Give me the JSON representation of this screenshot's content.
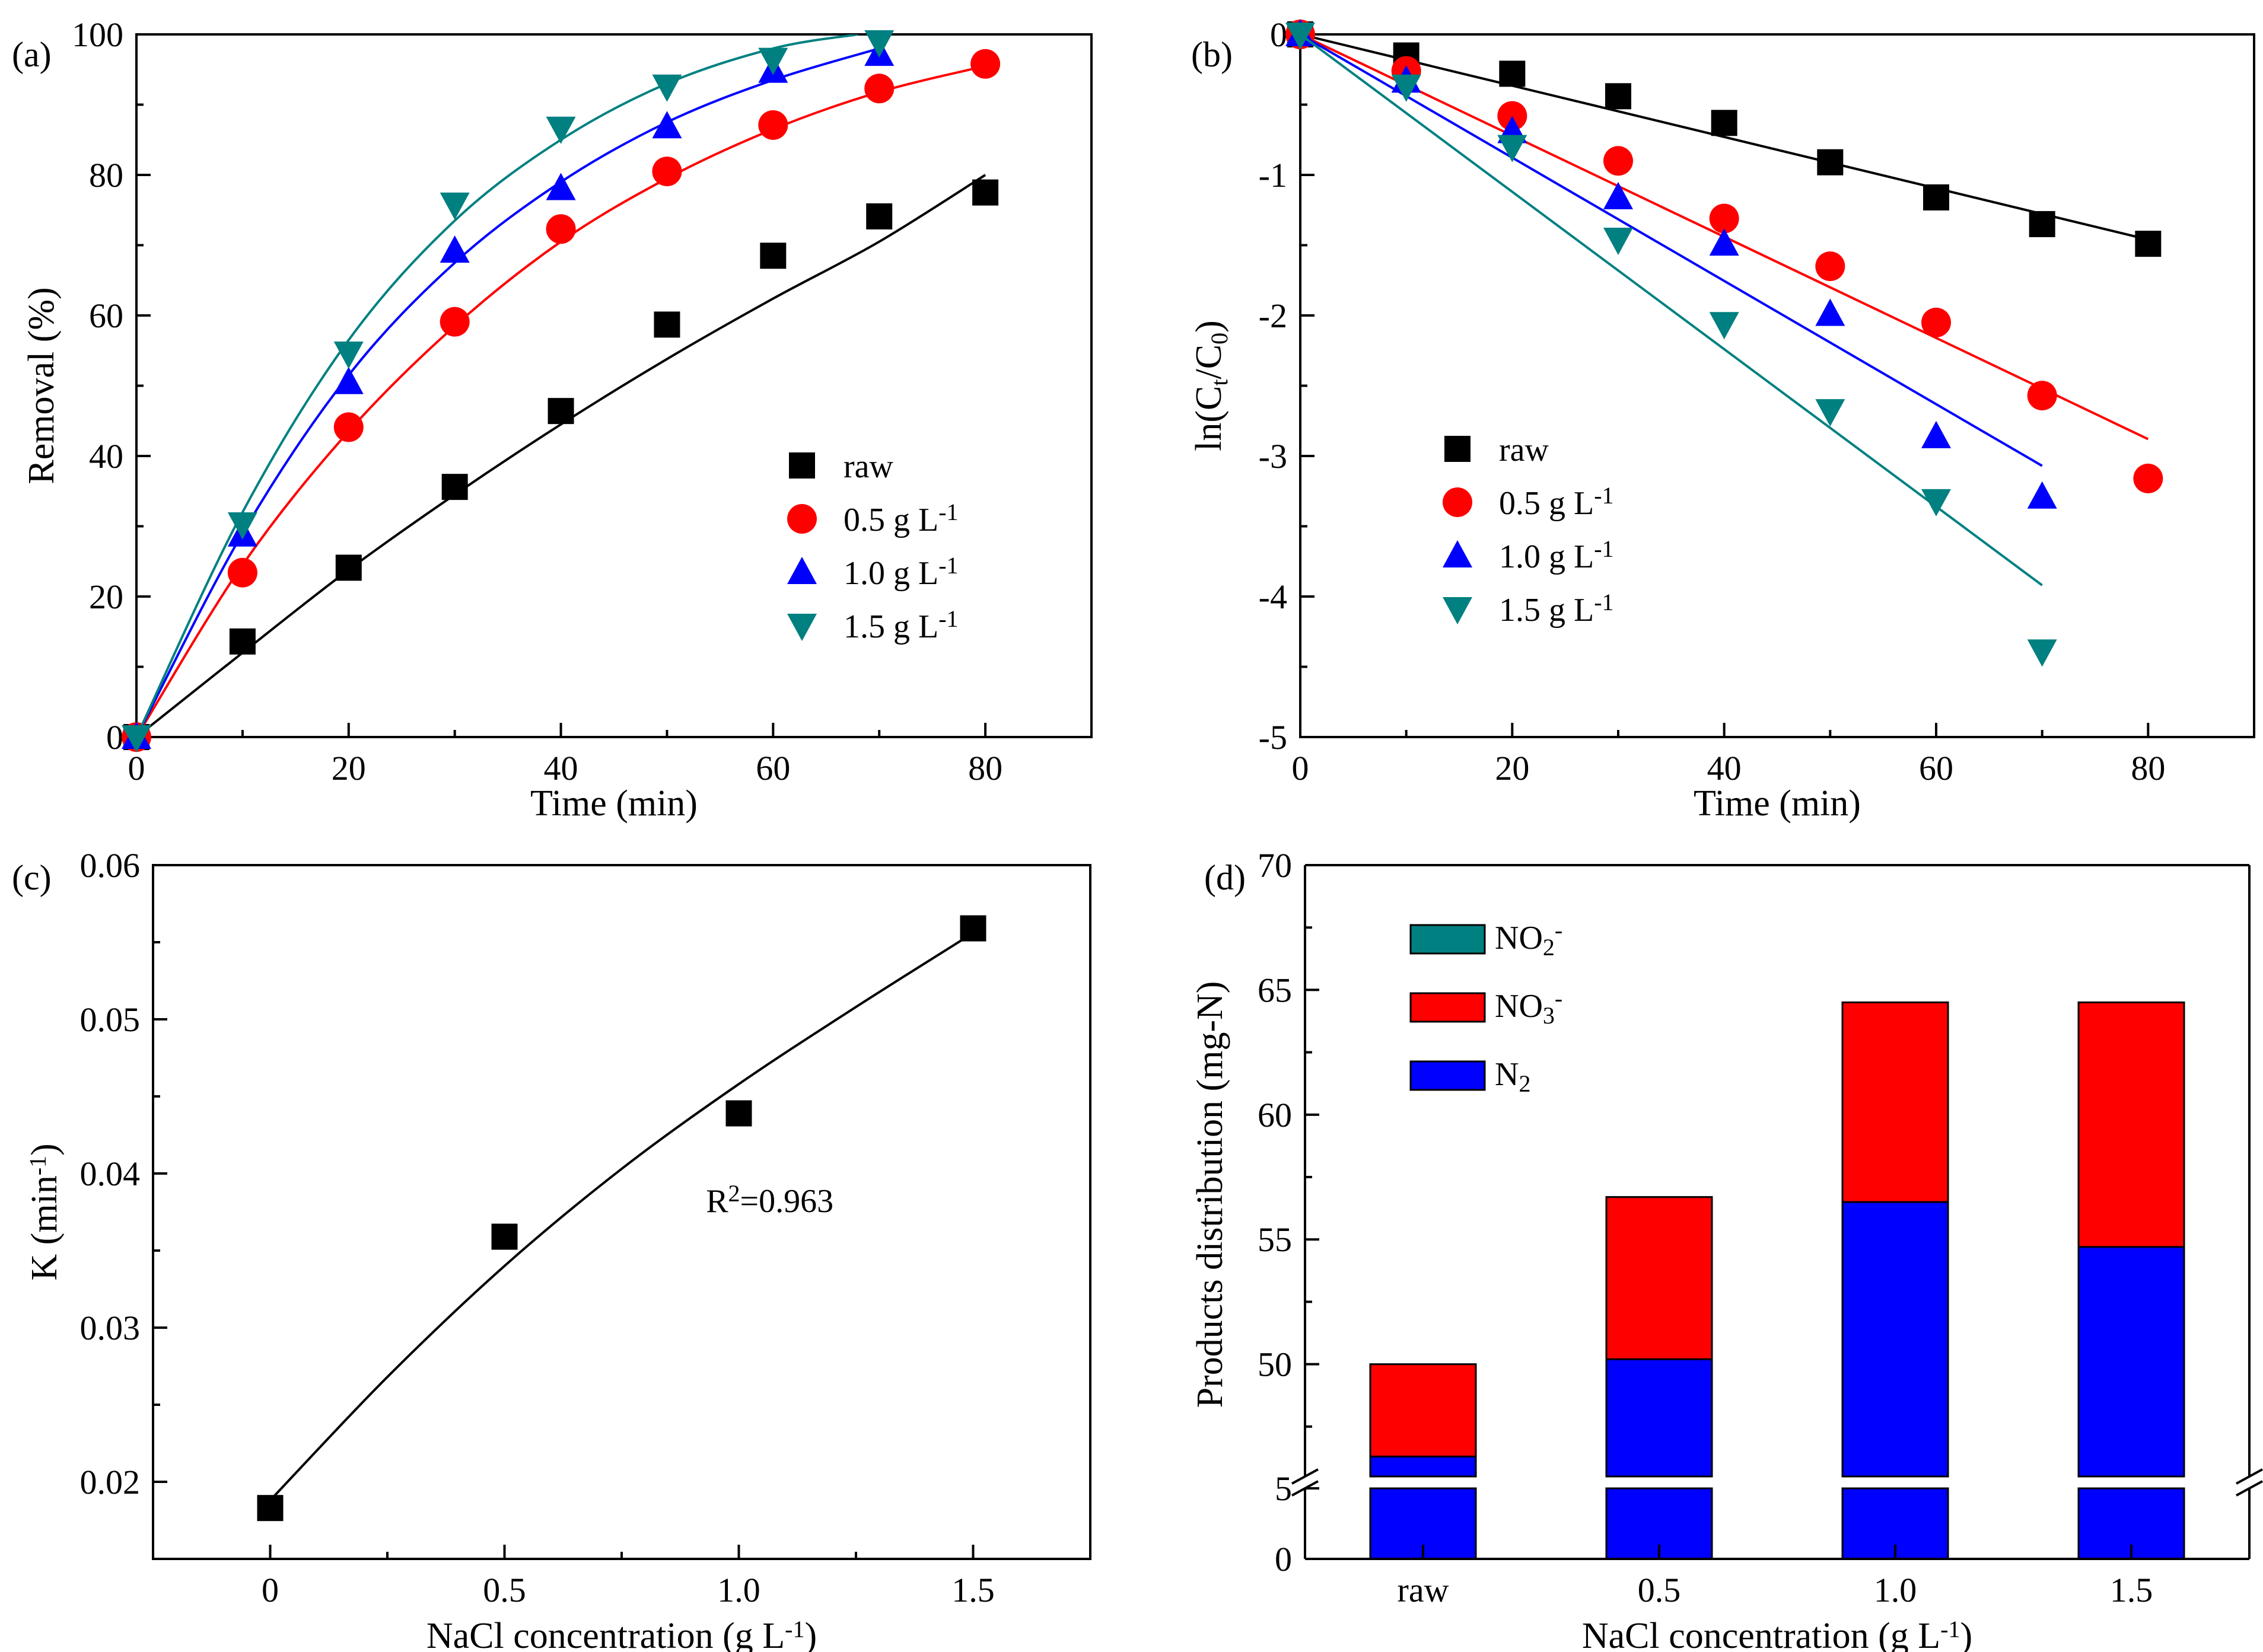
{
  "figure": {
    "panels": [
      "(a)",
      "(b)",
      "(c)",
      "(d)"
    ]
  },
  "chart_data": [
    {
      "id": "a",
      "label": "(a)",
      "type": "scatter",
      "title": "",
      "xlabel": "Time (min)",
      "ylabel": "Removal (%)",
      "xlim": [
        0,
        90
      ],
      "ylim": [
        0,
        100
      ],
      "xticks": [
        0,
        20,
        40,
        60,
        80
      ],
      "yticks": [
        0,
        20,
        40,
        60,
        80,
        100
      ],
      "legend_position": "middle-right",
      "series": [
        {
          "name": "raw",
          "unit": "",
          "marker": "square",
          "color": "#000000",
          "x": [
            0,
            10,
            20,
            30,
            40,
            50,
            60,
            70,
            80
          ],
          "y": [
            0,
            13.6,
            24.1,
            35.6,
            46.4,
            58.7,
            68.5,
            74.1,
            77.5
          ],
          "fit": {
            "x": [
              0,
              10,
              20,
              30,
              40,
              50,
              60,
              70,
              80
            ],
            "y": [
              0,
              12,
              23.8,
              34.5,
              44.5,
              53.8,
              62.4,
              70.5,
              80
            ]
          }
        },
        {
          "name": "0.5 g L",
          "unit": "-1",
          "marker": "circle",
          "color": "#ff0000",
          "x": [
            0,
            10,
            20,
            30,
            40,
            50,
            60,
            70,
            80
          ],
          "y": [
            0,
            23.4,
            44.1,
            59.1,
            72.3,
            80.5,
            87.1,
            92.3,
            95.8
          ],
          "fit": {
            "x": [
              0,
              10,
              20,
              30,
              40,
              50,
              60,
              70,
              80
            ],
            "y": [
              0,
              24.5,
              43.5,
              58.5,
              70.5,
              79.5,
              86.5,
              91.8,
              95.5
            ]
          }
        },
        {
          "name": "1.0 g L",
          "unit": "-1",
          "marker": "triangle-up",
          "color": "#0000ff",
          "x": [
            0,
            10,
            20,
            30,
            40,
            50,
            60,
            70
          ],
          "y": [
            0,
            28.8,
            50.5,
            69.2,
            78.1,
            86.9,
            94.8,
            97.2
          ],
          "fit": {
            "x": [
              0,
              10,
              20,
              30,
              40,
              50,
              60,
              70
            ],
            "y": [
              0,
              29,
              51.5,
              67.5,
              79,
              87.5,
              93.5,
              98
            ]
          }
        },
        {
          "name": "1.5 g L",
          "unit": "-1",
          "marker": "triangle-down",
          "color": "#008080",
          "x": [
            0,
            10,
            20,
            30,
            40,
            50,
            60,
            70
          ],
          "y": [
            0,
            30.3,
            54.6,
            75.8,
            86.6,
            92.6,
            96.4,
            98.9
          ],
          "fit": {
            "x": [
              0,
              10,
              20,
              30,
              40,
              50,
              60,
              68
            ],
            "y": [
              0,
              32,
              56.5,
              73.5,
              85,
              93,
              98,
              100
            ]
          }
        }
      ]
    },
    {
      "id": "b",
      "label": "(b)",
      "type": "scatter",
      "title": "",
      "xlabel": "Time (min)",
      "ylabel": "ln(Ct/C0)",
      "ylabel_parts": {
        "pre": "ln(C",
        "sub1": "t",
        "mid": "/C",
        "sub2": "0",
        "post": ")"
      },
      "xlim": [
        0,
        90
      ],
      "ylim": [
        -5,
        0
      ],
      "xticks": [
        0,
        20,
        40,
        60,
        80
      ],
      "yticks": [
        0,
        -1,
        -2,
        -3,
        -4,
        -5
      ],
      "legend_position": "middle-left",
      "series": [
        {
          "name": "raw",
          "unit": "",
          "marker": "square",
          "color": "#000000",
          "x": [
            0,
            10,
            20,
            30,
            40,
            50,
            60,
            70,
            80
          ],
          "y": [
            0,
            -0.15,
            -0.28,
            -0.44,
            -0.63,
            -0.91,
            -1.16,
            -1.35,
            -1.49
          ],
          "fit": {
            "x": [
              0,
              80
            ],
            "y": [
              0,
              -1.46
            ]
          }
        },
        {
          "name": "0.5 g L",
          "unit": "-1",
          "marker": "circle",
          "color": "#ff0000",
          "x": [
            0,
            10,
            20,
            30,
            40,
            50,
            60,
            70,
            80
          ],
          "y": [
            0,
            -0.26,
            -0.58,
            -0.9,
            -1.31,
            -1.65,
            -2.05,
            -2.57,
            -3.16
          ],
          "fit": {
            "x": [
              0,
              80
            ],
            "y": [
              0,
              -2.88
            ]
          }
        },
        {
          "name": "1.0 g L",
          "unit": "-1",
          "marker": "triangle-up",
          "color": "#0000ff",
          "x": [
            0,
            10,
            20,
            30,
            40,
            50,
            60,
            70
          ],
          "y": [
            0,
            -0.33,
            -0.69,
            -1.16,
            -1.49,
            -1.99,
            -2.86,
            -3.29
          ],
          "fit": {
            "x": [
              0,
              70
            ],
            "y": [
              0,
              -3.07
            ]
          }
        },
        {
          "name": "1.5 g L",
          "unit": "-1",
          "marker": "triangle-down",
          "color": "#008080",
          "x": [
            0,
            10,
            20,
            30,
            40,
            50,
            60,
            70
          ],
          "y": [
            0,
            -0.37,
            -0.8,
            -1.46,
            -2.06,
            -2.68,
            -3.32,
            -4.39
          ],
          "fit": {
            "x": [
              0,
              70
            ],
            "y": [
              0,
              -3.92
            ]
          }
        }
      ]
    },
    {
      "id": "c",
      "label": "(c)",
      "type": "scatter",
      "title": "",
      "xlabel": "NaCl concentration (g L-1)",
      "xlabel_parts": {
        "pre": "NaCl concentration (g L",
        "sup": "-1",
        "post": ")"
      },
      "ylabel": "K (min-1)",
      "ylabel_parts": {
        "pre": "K (min",
        "sup": "-1",
        "post": ")"
      },
      "xlim": [
        -0.25,
        1.75
      ],
      "ylim": [
        0.015,
        0.06
      ],
      "xticks": [
        0,
        0.5,
        1.0,
        1.5
      ],
      "xtick_labels": [
        "0",
        "0.5",
        "1.0",
        "1.5"
      ],
      "yticks": [
        0.02,
        0.03,
        0.04,
        0.05,
        0.06
      ],
      "ytick_labels": [
        "0.02",
        "0.03",
        "0.04",
        "0.05",
        "0.06"
      ],
      "annotation": {
        "text": "R",
        "sup": "2",
        "rest": "=0.963",
        "x": 0.93,
        "y": 0.0375
      },
      "series": [
        {
          "name": "K",
          "marker": "square",
          "color": "#000000",
          "x": [
            0,
            0.5,
            1.0,
            1.5
          ],
          "y": [
            0.0183,
            0.0359,
            0.0439,
            0.0559
          ],
          "fit": {
            "x": [
              0,
              0.25,
              0.5,
              0.75,
              1.0,
              1.25,
              1.5
            ],
            "y": [
              0.0188,
              0.0268,
              0.034,
              0.0403,
              0.0458,
              0.0508,
              0.0556
            ]
          }
        }
      ]
    },
    {
      "id": "d",
      "label": "(d)",
      "type": "bar",
      "stacked": true,
      "title": "",
      "xlabel": "NaCl concentration (g L-1)",
      "xlabel_parts": {
        "pre": "NaCl concentration (g L",
        "sup": "-1",
        "post": ")"
      },
      "ylabel": "Products distribution (mg-N)",
      "categories": [
        "raw",
        "0.5",
        "1.0",
        "1.5"
      ],
      "ylim": [
        0,
        70
      ],
      "axis_break": {
        "lower": [
          0,
          5
        ],
        "upper": [
          45.5,
          70
        ]
      },
      "yticks_lower": [
        0,
        5
      ],
      "yticks_upper": [
        50,
        55,
        60,
        65,
        70
      ],
      "legend_position": "top-left",
      "series": [
        {
          "name": "N",
          "sub": "2",
          "color": "#0000ff",
          "values": [
            46.3,
            50.2,
            56.5,
            54.7
          ]
        },
        {
          "name": "NO",
          "sub": "3",
          "sup": "-",
          "color": "#ff0000",
          "values": [
            3.7,
            6.5,
            8.0,
            9.8
          ]
        },
        {
          "name": "NO",
          "sub": "2",
          "sup": "-",
          "color": "#008080",
          "values": [
            0,
            0,
            0,
            0
          ]
        }
      ]
    }
  ]
}
